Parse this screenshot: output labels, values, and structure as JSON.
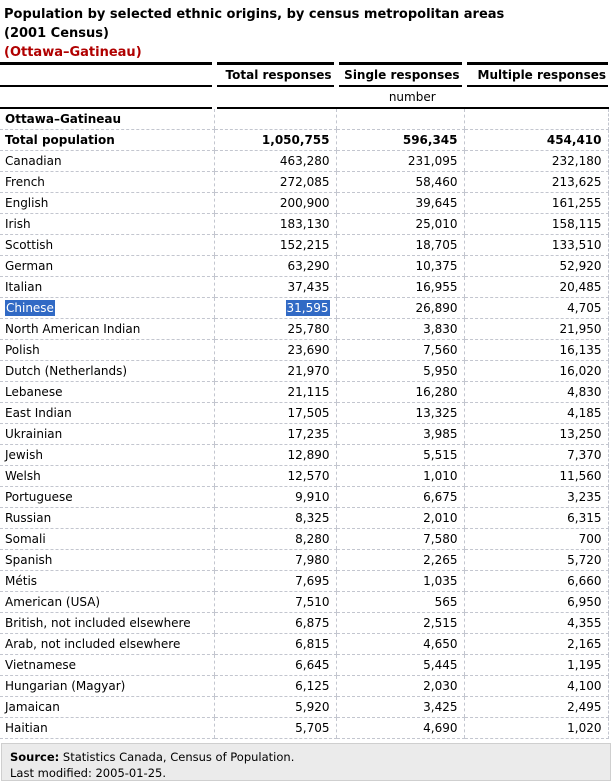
{
  "page": {
    "title_line1": "Population by selected ethnic origins, by census metropolitan areas",
    "title_line2": "(2001 Census)",
    "subtitle": "(Ottawa–Gatineau)",
    "subtitle_color": "#b00000"
  },
  "table": {
    "columns": [
      "Total responses",
      "Single responses",
      "Multiple responses"
    ],
    "unit_label": "number",
    "region_label": "Ottawa–Gatineau",
    "selection_color": "#316AC5",
    "total_row": {
      "label": "Total population",
      "total": "1,050,755",
      "single": "596,345",
      "multiple": "454,410"
    },
    "rows": [
      {
        "label": "Canadian",
        "total": "463,280",
        "single": "231,095",
        "multiple": "232,180"
      },
      {
        "label": "French",
        "total": "272,085",
        "single": "58,460",
        "multiple": "213,625"
      },
      {
        "label": "English",
        "total": "200,900",
        "single": "39,645",
        "multiple": "161,255"
      },
      {
        "label": "Irish",
        "total": "183,130",
        "single": "25,010",
        "multiple": "158,115"
      },
      {
        "label": "Scottish",
        "total": "152,215",
        "single": "18,705",
        "multiple": "133,510"
      },
      {
        "label": "German",
        "total": "63,290",
        "single": "10,375",
        "multiple": "52,920"
      },
      {
        "label": "Italian",
        "total": "37,435",
        "single": "16,955",
        "multiple": "20,485"
      },
      {
        "label": "Chinese",
        "total": "31,595",
        "single": "26,890",
        "multiple": "4,705",
        "selected_cells": [
          "label",
          "total"
        ]
      },
      {
        "label": "North American Indian",
        "total": "25,780",
        "single": "3,830",
        "multiple": "21,950"
      },
      {
        "label": "Polish",
        "total": "23,690",
        "single": "7,560",
        "multiple": "16,135"
      },
      {
        "label": "Dutch (Netherlands)",
        "total": "21,970",
        "single": "5,950",
        "multiple": "16,020"
      },
      {
        "label": "Lebanese",
        "total": "21,115",
        "single": "16,280",
        "multiple": "4,830"
      },
      {
        "label": "East Indian",
        "total": "17,505",
        "single": "13,325",
        "multiple": "4,185"
      },
      {
        "label": "Ukrainian",
        "total": "17,235",
        "single": "3,985",
        "multiple": "13,250"
      },
      {
        "label": "Jewish",
        "total": "12,890",
        "single": "5,515",
        "multiple": "7,370"
      },
      {
        "label": "Welsh",
        "total": "12,570",
        "single": "1,010",
        "multiple": "11,560"
      },
      {
        "label": "Portuguese",
        "total": "9,910",
        "single": "6,675",
        "multiple": "3,235"
      },
      {
        "label": "Russian",
        "total": "8,325",
        "single": "2,010",
        "multiple": "6,315"
      },
      {
        "label": "Somali",
        "total": "8,280",
        "single": "7,580",
        "multiple": "700"
      },
      {
        "label": "Spanish",
        "total": "7,980",
        "single": "2,265",
        "multiple": "5,720"
      },
      {
        "label": "Métis",
        "total": "7,695",
        "single": "1,035",
        "multiple": "6,660"
      },
      {
        "label": "American (USA)",
        "total": "7,510",
        "single": "565",
        "multiple": "6,950"
      },
      {
        "label": "British, not included elsewhere",
        "total": "6,875",
        "single": "2,515",
        "multiple": "4,355"
      },
      {
        "label": "Arab, not included elsewhere",
        "total": "6,815",
        "single": "4,650",
        "multiple": "2,165"
      },
      {
        "label": "Vietnamese",
        "total": "6,645",
        "single": "5,445",
        "multiple": "1,195"
      },
      {
        "label": "Hungarian (Magyar)",
        "total": "6,125",
        "single": "2,030",
        "multiple": "4,100"
      },
      {
        "label": "Jamaican",
        "total": "5,920",
        "single": "3,425",
        "multiple": "2,495"
      },
      {
        "label": "Haitian",
        "total": "5,705",
        "single": "4,690",
        "multiple": "1,020"
      }
    ]
  },
  "footer": {
    "source_label": "Source:",
    "source_text": " Statistics Canada, Census of Population.",
    "last_modified": "Last modified: 2005-01-25."
  }
}
